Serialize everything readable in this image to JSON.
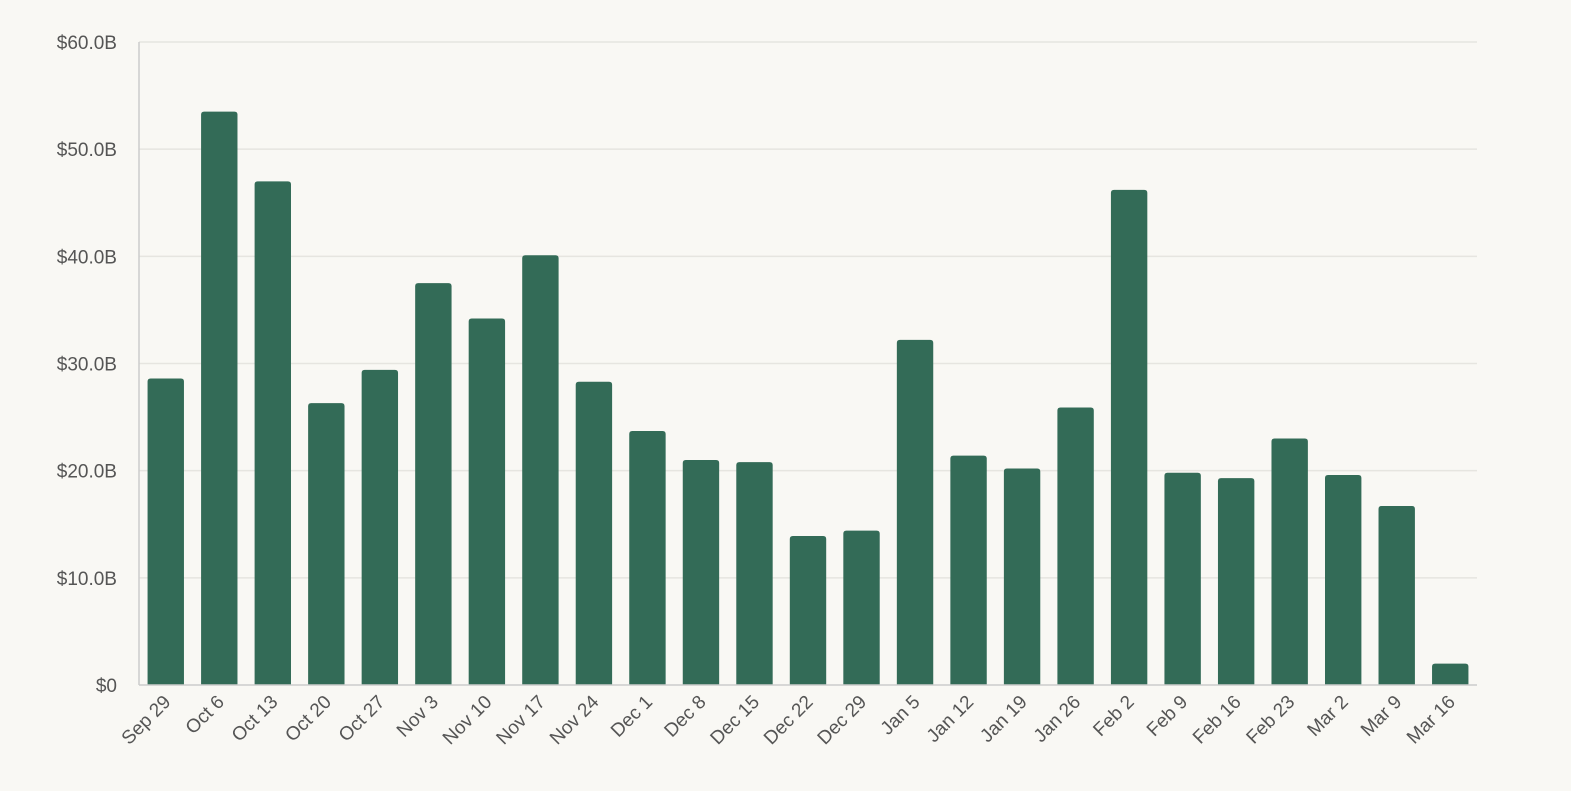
{
  "chart_data": {
    "type": "bar",
    "title": "",
    "xlabel": "",
    "ylabel": "",
    "categories": [
      "Sep 29",
      "Oct 6",
      "Oct 13",
      "Oct 20",
      "Oct 27",
      "Nov 3",
      "Nov 10",
      "Nov 17",
      "Nov 24",
      "Dec 1",
      "Dec 8",
      "Dec 15",
      "Dec 22",
      "Dec 29",
      "Jan 5",
      "Jan 12",
      "Jan 19",
      "Jan 26",
      "Feb 2",
      "Feb 9",
      "Feb 16",
      "Feb 23",
      "Mar 2",
      "Mar 9",
      "Mar 16"
    ],
    "values": [
      28.6,
      53.5,
      47.0,
      26.3,
      29.4,
      37.5,
      34.2,
      40.1,
      28.3,
      23.7,
      21.0,
      20.8,
      13.9,
      14.4,
      32.2,
      21.4,
      20.2,
      25.9,
      46.2,
      19.8,
      19.3,
      23.0,
      19.6,
      16.7,
      2.0
    ],
    "ylim": [
      0,
      60
    ],
    "yticks": [
      0,
      10,
      20,
      30,
      40,
      50,
      60
    ],
    "ytick_labels": [
      "$0",
      "$10.0B",
      "$20.0B",
      "$30.0B",
      "$40.0B",
      "$50.0B",
      "$60.0B"
    ],
    "grid": true,
    "legend": "none",
    "bar_color": "#336b57",
    "grid_color": "#e6e5e0",
    "axis_color": "#cccccc"
  }
}
